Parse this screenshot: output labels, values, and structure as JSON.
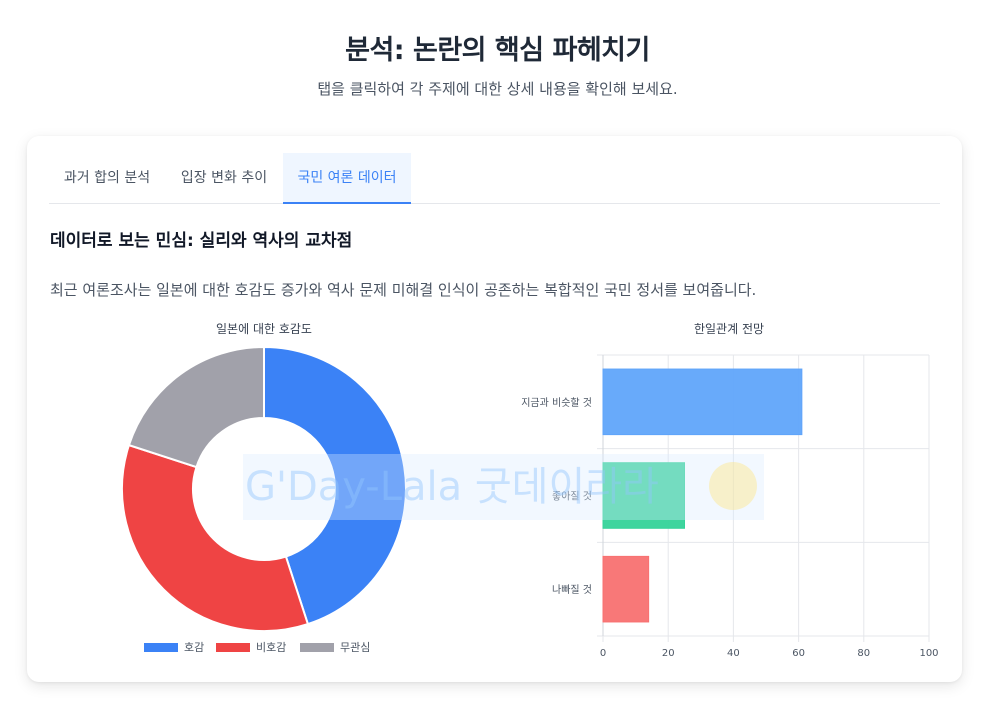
{
  "header": {
    "title": "분석: 논란의 핵심 파헤치기",
    "subtitle": "탭을 클릭하여 각 주제에 대한 상세 내용을 확인해 보세요."
  },
  "tabs": [
    {
      "label": "과거 합의 분석",
      "active": false
    },
    {
      "label": "입장 변화 추이",
      "active": false
    },
    {
      "label": "국민 여론 데이터",
      "active": true
    }
  ],
  "section": {
    "title": "데이터로 보는 민심: 실리와 역사의 교차점",
    "description": "최근 여론조사는 일본에 대한 호감도 증가와 역사 문제 미해결 인식이 공존하는 복합적인 국민 정서를 보여줍니다."
  },
  "watermark": {
    "text": "G'Day-Lala 굿데이라라"
  },
  "chart_data": [
    {
      "type": "pie",
      "title": "일본에 대한 호감도",
      "categories": [
        "호감",
        "비호감",
        "무관심"
      ],
      "values": [
        45,
        35,
        20
      ],
      "colors": [
        "#3b82f6",
        "#ef4444",
        "#a1a1aa"
      ],
      "legend": "bottom"
    },
    {
      "type": "bar",
      "orientation": "horizontal",
      "title": "한일관계 전망",
      "categories": [
        "지금과 비슷할 것",
        "좋아질 것",
        "나빠질 것"
      ],
      "values": [
        61,
        25,
        14
      ],
      "colors": [
        "#60a5fa",
        "#34d399",
        "#f87171"
      ],
      "xlim": [
        0,
        100
      ],
      "xticks": [
        0,
        20,
        40,
        60,
        80,
        100
      ],
      "grid": true
    }
  ]
}
